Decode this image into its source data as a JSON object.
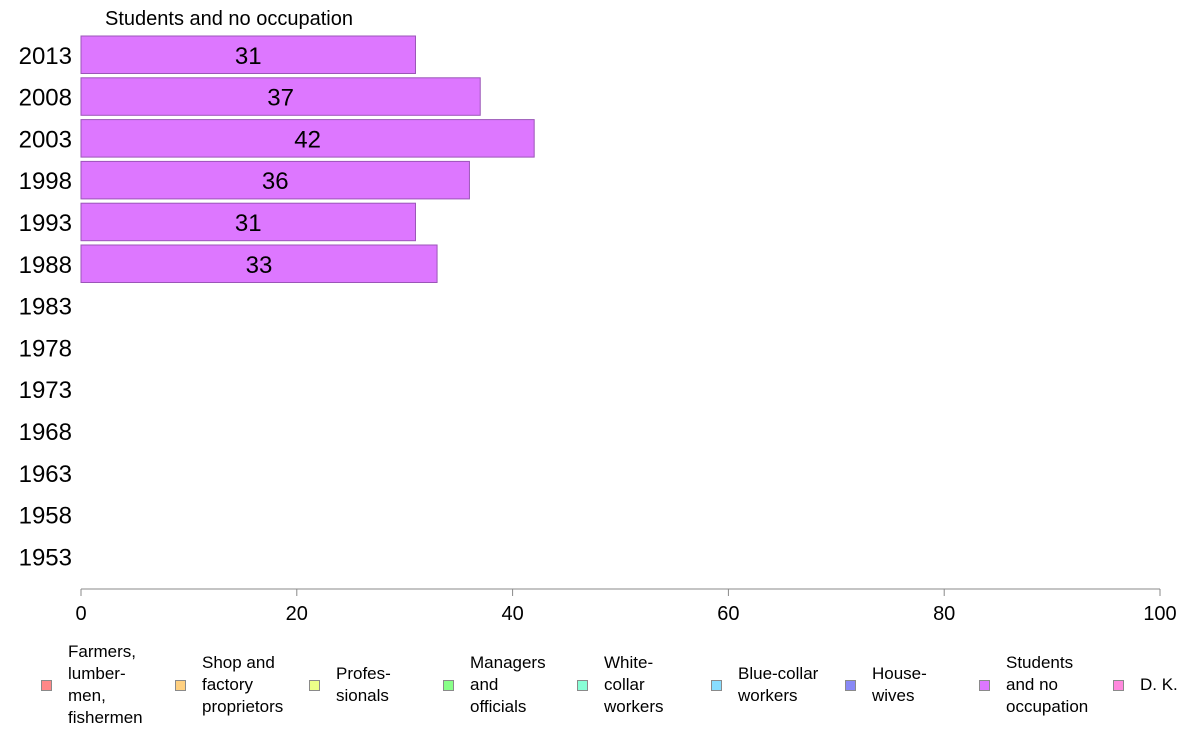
{
  "chart_data": {
    "type": "bar",
    "orientation": "horizontal",
    "title": "Students and no occupation",
    "categories": [
      "2013",
      "2008",
      "2003",
      "1998",
      "1993",
      "1988",
      "1983",
      "1978",
      "1973",
      "1968",
      "1963",
      "1958",
      "1953"
    ],
    "series": [
      {
        "name": "Students and no occupation",
        "values": [
          31,
          37,
          42,
          36,
          31,
          33,
          null,
          null,
          null,
          null,
          null,
          null,
          null
        ],
        "color": "#dd77ff"
      }
    ],
    "data_labels": [
      "31",
      "37",
      "42",
      "36",
      "31",
      "33",
      "",
      "",
      "",
      "",
      "",
      "",
      ""
    ],
    "xlim": [
      0,
      100
    ],
    "xticks": [
      0,
      20,
      40,
      60,
      80,
      100
    ],
    "grid": false,
    "legend_position": "bottom",
    "legend": [
      {
        "label": "Farmers,\nlumber-\nmen,\nfishermen",
        "color": "#ff8888"
      },
      {
        "label": "Shop and\nfactory\nproprietors",
        "color": "#ffd080"
      },
      {
        "label": "Profes-\nsionals",
        "color": "#ecff88"
      },
      {
        "label": "Managers\nand\nofficials",
        "color": "#88ff88"
      },
      {
        "label": "White-\ncollar\nworkers",
        "color": "#88ffd6"
      },
      {
        "label": "Blue-collar\nworkers",
        "color": "#88ddff"
      },
      {
        "label": "House-\nwives",
        "color": "#8888f6"
      },
      {
        "label": "Students\nand no\noccupation",
        "color": "#dd77ff"
      },
      {
        "label": "D. K.",
        "color": "#ff88dd"
      }
    ]
  }
}
